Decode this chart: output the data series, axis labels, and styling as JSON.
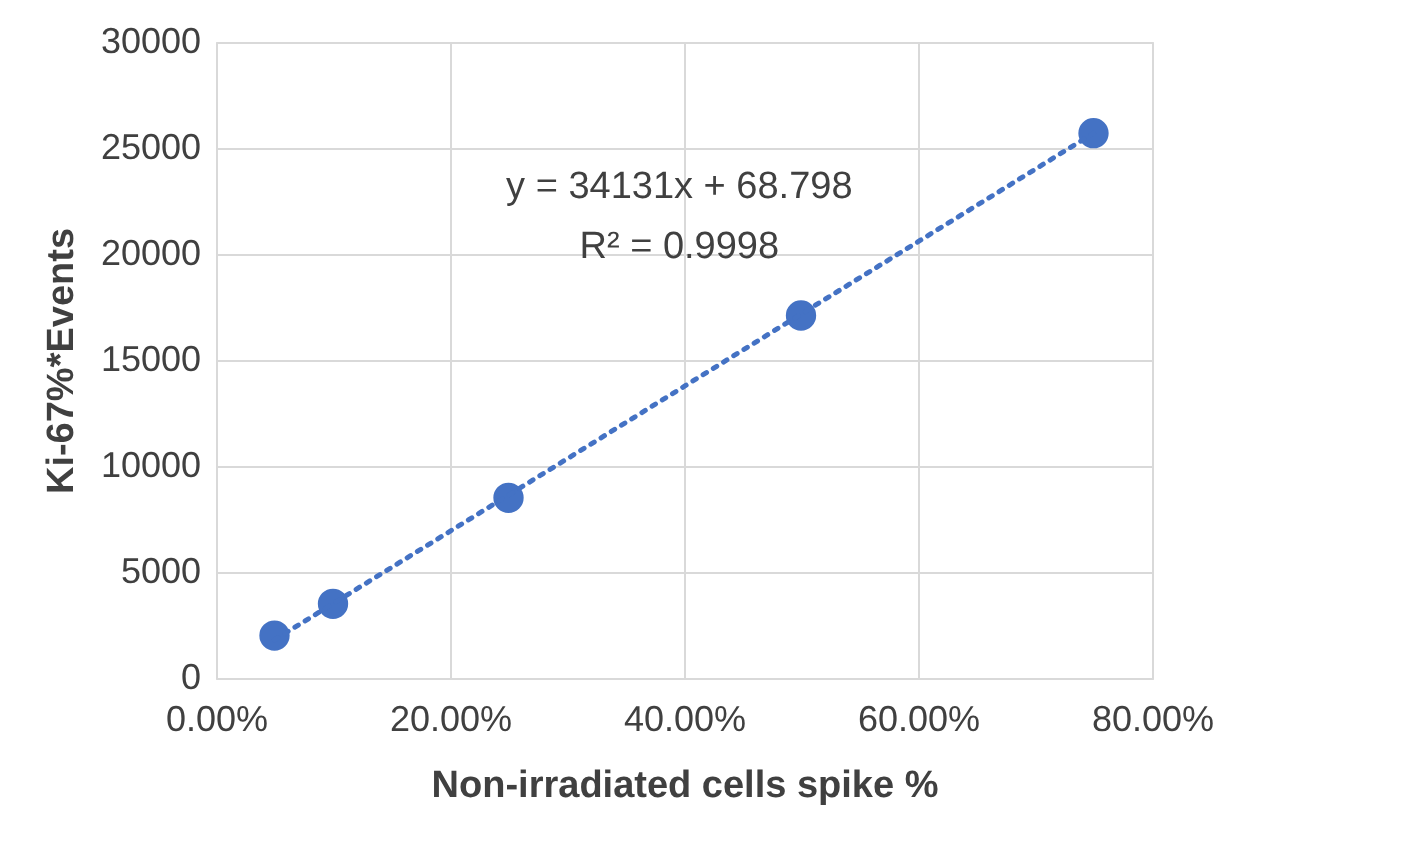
{
  "chart_data": {
    "type": "scatter",
    "xlabel": "Non-irradiated cells spike %",
    "ylabel": "Ki-67%*Events",
    "annotations": [
      "y = 34131x + 68.798",
      "R² = 0.9998"
    ],
    "x": [
      0.05,
      0.1,
      0.25,
      0.5,
      0.75
    ],
    "series": [
      {
        "color": "#4472c4",
        "marker": "circle",
        "values": [
          2000,
          3500,
          8500,
          17100,
          25700
        ]
      },
      {
        "type": "line",
        "color": "#4472c4",
        "marker": "none",
        "line_style": "dotted",
        "x": [
          0.05,
          0.75
        ],
        "values": [
          1800,
          25700
        ]
      }
    ],
    "xlim": [
      0,
      0.8
    ],
    "ylim": [
      0,
      30000
    ],
    "xticks": [
      {
        "value": 0,
        "label": "0.00%"
      },
      {
        "value": 0.2,
        "label": "20.00%"
      },
      {
        "value": 0.4,
        "label": "40.00%"
      },
      {
        "value": 0.6,
        "label": "60.00%"
      },
      {
        "value": 0.8,
        "label": "80.00%"
      }
    ],
    "yticks": [
      0,
      5000,
      10000,
      15000,
      20000,
      25000,
      30000
    ],
    "grid": true
  }
}
